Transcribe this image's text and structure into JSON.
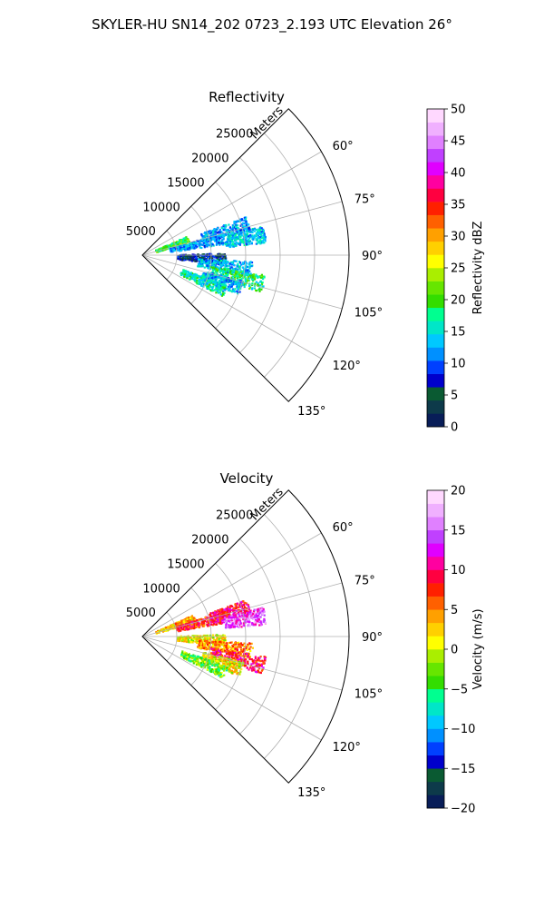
{
  "suptitle": "SKYLER-HU  SN14_202  0723_2.193 UTC Elevation 26°",
  "chart_data": [
    {
      "type": "heatmap",
      "subtype": "polar-sector-ppi",
      "title": "Reflectivity",
      "radial_label": "Meters",
      "radial_range": [
        0,
        30000
      ],
      "radial_ticks": [
        "5000",
        "10000",
        "15000",
        "20000",
        "25000"
      ],
      "radial_tick_values": [
        5000,
        10000,
        15000,
        20000,
        25000
      ],
      "angular_range_deg": [
        45,
        135
      ],
      "angular_ticks": [
        "60°",
        "75°",
        "90°",
        "105°",
        "120°",
        "135°"
      ],
      "angular_tick_values": [
        60,
        75,
        90,
        105,
        120,
        135
      ],
      "grid": true,
      "colorbar": {
        "label": "Reflectivity dBZ",
        "range": [
          0,
          50
        ],
        "ticks": [
          "0",
          "5",
          "10",
          "15",
          "20",
          "25",
          "30",
          "35",
          "40",
          "45",
          "50"
        ],
        "colors": [
          "#081d58",
          "#0d3a4a",
          "#0a5a32",
          "#0000cc",
          "#0040ff",
          "#0090ff",
          "#00c8ff",
          "#00e6c8",
          "#00ff90",
          "#33dd00",
          "#66e600",
          "#aaee00",
          "#ffff00",
          "#ffd000",
          "#ffa000",
          "#ff6000",
          "#ff2000",
          "#ff0040",
          "#ff00a0",
          "#e000ff",
          "#c040ff",
          "#e080ff",
          "#f0b0ff",
          "#ffd8ff"
        ]
      },
      "echo_regions": [
        {
          "az_deg": 70,
          "range_m": [
            2000,
            7000
          ],
          "value": 20
        },
        {
          "az_deg": 78,
          "range_m": [
            4000,
            12000
          ],
          "value": 12
        },
        {
          "az_deg": 73,
          "range_m": [
            9000,
            16000
          ],
          "value": 12
        },
        {
          "az_deg": 80,
          "range_m": [
            12000,
            18000
          ],
          "value": 14
        },
        {
          "az_deg": 92,
          "range_m": [
            5000,
            12000
          ],
          "value": 6
        },
        {
          "az_deg": 97,
          "range_m": [
            8000,
            16000
          ],
          "value": 13
        },
        {
          "az_deg": 103,
          "range_m": [
            10000,
            18000
          ],
          "value": 18
        },
        {
          "az_deg": 108,
          "range_m": [
            9000,
            15000
          ],
          "value": 13
        },
        {
          "az_deg": 113,
          "range_m": [
            6000,
            13000
          ],
          "value": 16
        }
      ]
    },
    {
      "type": "heatmap",
      "subtype": "polar-sector-ppi",
      "title": "Velocity",
      "radial_label": "Meters",
      "radial_range": [
        0,
        30000
      ],
      "radial_ticks": [
        "5000",
        "10000",
        "15000",
        "20000",
        "25000"
      ],
      "radial_tick_values": [
        5000,
        10000,
        15000,
        20000,
        25000
      ],
      "angular_range_deg": [
        45,
        135
      ],
      "angular_ticks": [
        "60°",
        "75°",
        "90°",
        "105°",
        "120°",
        "135°"
      ],
      "angular_tick_values": [
        60,
        75,
        90,
        105,
        120,
        135
      ],
      "grid": true,
      "colorbar": {
        "label": "Velocity (m/s)",
        "range": [
          -20,
          20
        ],
        "ticks": [
          "−20",
          "−15",
          "−10",
          "−5",
          "0",
          "5",
          "10",
          "15",
          "20"
        ],
        "colors": [
          "#081d58",
          "#0d3a4a",
          "#0a5a32",
          "#0000cc",
          "#0040ff",
          "#0090ff",
          "#00c8ff",
          "#00e6c8",
          "#00ff90",
          "#33dd00",
          "#66e600",
          "#aaee00",
          "#ffff00",
          "#ffd000",
          "#ffa000",
          "#ff6000",
          "#ff2000",
          "#ff0040",
          "#ff00a0",
          "#e000ff",
          "#c040ff",
          "#e080ff",
          "#f0b0ff",
          "#ffd8ff"
        ]
      },
      "echo_regions": [
        {
          "az_deg": 70,
          "range_m": [
            2000,
            8000
          ],
          "value": 3
        },
        {
          "az_deg": 76,
          "range_m": [
            5000,
            13000
          ],
          "value": 8
        },
        {
          "az_deg": 74,
          "range_m": [
            10000,
            16000
          ],
          "value": 9
        },
        {
          "az_deg": 80,
          "range_m": [
            12000,
            18000
          ],
          "value": 14
        },
        {
          "az_deg": 92,
          "range_m": [
            5000,
            12000
          ],
          "value": 1
        },
        {
          "az_deg": 97,
          "range_m": [
            8000,
            16000
          ],
          "value": 5
        },
        {
          "az_deg": 103,
          "range_m": [
            10000,
            18000
          ],
          "value": 9
        },
        {
          "az_deg": 108,
          "range_m": [
            9000,
            15000
          ],
          "value": 1
        },
        {
          "az_deg": 113,
          "range_m": [
            6000,
            13000
          ],
          "value": -3
        }
      ]
    }
  ]
}
